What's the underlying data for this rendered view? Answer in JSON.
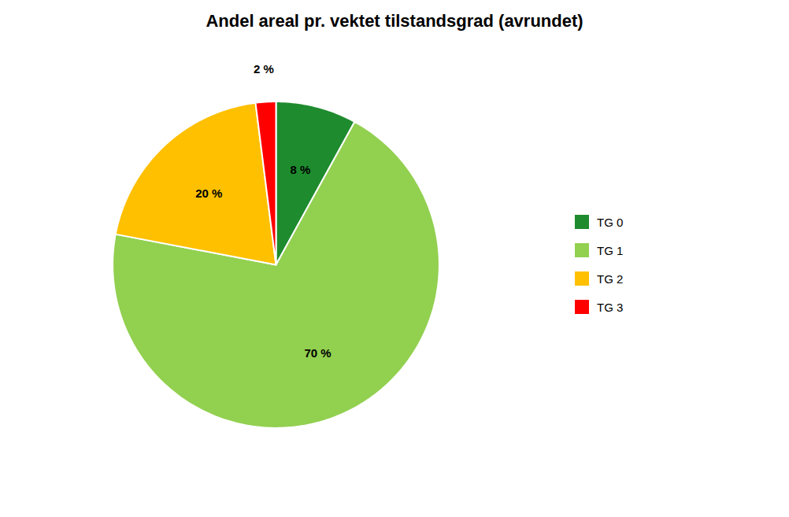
{
  "chart_data": {
    "type": "pie",
    "title": "Andel areal pr. vektet tilstandsgrad (avrundet)",
    "categories": [
      "TG 0",
      "TG 1",
      "TG 2",
      "TG 3"
    ],
    "values": [
      8,
      70,
      20,
      2
    ],
    "value_labels": [
      "8 %",
      "70 %",
      "20 %",
      "2 %"
    ],
    "colors": [
      "#1e8b2e",
      "#92d050",
      "#ffc000",
      "#ff0000"
    ],
    "data_labels": true,
    "legend": "right"
  }
}
